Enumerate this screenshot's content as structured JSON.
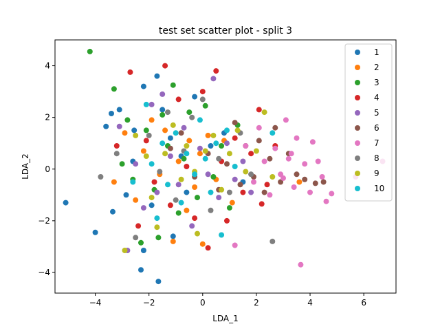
{
  "chart_data": {
    "type": "scatter",
    "title": "test set scatter plot - split 3",
    "xlabel": "LDA_1",
    "ylabel": "LDA_2",
    "xlim": [
      -5.5,
      7.2
    ],
    "ylim": [
      -4.8,
      5.0
    ],
    "xticks": [
      -4,
      -2,
      0,
      2,
      4,
      6
    ],
    "yticks": [
      -4,
      -2,
      0,
      2,
      4
    ],
    "legend_position": "top-right",
    "grid": false,
    "series": [
      {
        "name": "1",
        "color": "#1f77b4",
        "points": [
          [
            -5.1,
            -1.3
          ],
          [
            -4.0,
            -2.45
          ],
          [
            -3.6,
            1.65
          ],
          [
            -3.4,
            2.15
          ],
          [
            -3.35,
            -1.65
          ],
          [
            -3.1,
            2.3
          ],
          [
            -2.85,
            -1.0
          ],
          [
            -2.6,
            0.3
          ],
          [
            -2.55,
            1.5
          ],
          [
            -2.3,
            -3.9
          ],
          [
            -2.2,
            -3.15
          ],
          [
            -2.2,
            3.2
          ],
          [
            -1.9,
            -1.4
          ],
          [
            -1.7,
            3.6
          ],
          [
            -1.65,
            -4.35
          ],
          [
            -1.5,
            2.3
          ],
          [
            -1.2,
            1.2
          ],
          [
            -1.1,
            -2.6
          ],
          [
            -0.8,
            0.5
          ],
          [
            -0.6,
            -0.9
          ],
          [
            -0.3,
            2.8
          ],
          [
            0.3,
            0.9
          ],
          [
            0.8,
            1.4
          ],
          [
            1.5,
            -0.5
          ]
        ]
      },
      {
        "name": "2",
        "color": "#ff7f0e",
        "points": [
          [
            -3.3,
            -0.5
          ],
          [
            -2.9,
            1.4
          ],
          [
            -2.5,
            -1.2
          ],
          [
            -2.2,
            0.7
          ],
          [
            -1.9,
            1.9
          ],
          [
            -1.6,
            -0.2
          ],
          [
            -1.4,
            1.5
          ],
          [
            -1.1,
            -2.8
          ],
          [
            -0.9,
            0.3
          ],
          [
            -0.6,
            -1.6
          ],
          [
            -0.5,
            1.1
          ],
          [
            -0.3,
            -0.7
          ],
          [
            -0.1,
            0.6
          ],
          [
            0.0,
            -2.9
          ],
          [
            0.2,
            1.3
          ],
          [
            0.5,
            -0.4
          ],
          [
            0.8,
            1.1
          ],
          [
            1.1,
            -1.3
          ],
          [
            3.6,
            -0.5
          ]
        ]
      },
      {
        "name": "3",
        "color": "#2ca02c",
        "points": [
          [
            -4.2,
            4.55
          ],
          [
            -3.3,
            3.1
          ],
          [
            -3.0,
            0.2
          ],
          [
            -2.8,
            1.9
          ],
          [
            -2.6,
            -0.4
          ],
          [
            -2.3,
            -2.85
          ],
          [
            -2.1,
            1.5
          ],
          [
            -1.8,
            -0.8
          ],
          [
            -1.65,
            -2.65
          ],
          [
            -1.5,
            2.1
          ],
          [
            -1.3,
            0.9
          ],
          [
            -1.1,
            3.25
          ],
          [
            -0.9,
            -1.7
          ],
          [
            -0.7,
            0.4
          ],
          [
            -0.5,
            2.2
          ],
          [
            -0.2,
            -1.1
          ],
          [
            0.1,
            2.45
          ],
          [
            0.4,
            -0.3
          ],
          [
            0.7,
            0.9
          ],
          [
            1.0,
            -1.5
          ],
          [
            1.3,
            1.7
          ]
        ]
      },
      {
        "name": "4",
        "color": "#d62728",
        "points": [
          [
            -3.2,
            0.9
          ],
          [
            -2.7,
            3.75
          ],
          [
            -2.4,
            -2.2
          ],
          [
            -2.1,
            1.1
          ],
          [
            -1.8,
            -0.5
          ],
          [
            -1.4,
            4.0
          ],
          [
            -1.2,
            -1.4
          ],
          [
            -0.9,
            2.7
          ],
          [
            -0.6,
            0.1
          ],
          [
            -0.3,
            -1.9
          ],
          [
            0.0,
            3.0
          ],
          [
            0.2,
            -3.05
          ],
          [
            0.5,
            3.8
          ],
          [
            0.7,
            0.3
          ],
          [
            0.9,
            -2.0
          ],
          [
            1.2,
            1.2
          ],
          [
            1.5,
            -0.9
          ],
          [
            1.8,
            0.6
          ],
          [
            2.1,
            2.3
          ],
          [
            2.2,
            -1.35
          ],
          [
            2.4,
            -0.6
          ],
          [
            2.7,
            0.9
          ]
        ]
      },
      {
        "name": "5",
        "color": "#9467bd",
        "points": [
          [
            -3.1,
            1.65
          ],
          [
            -2.8,
            -3.15
          ],
          [
            -2.5,
            0.2
          ],
          [
            -2.2,
            -1.5
          ],
          [
            -1.9,
            2.5
          ],
          [
            -1.7,
            -0.9
          ],
          [
            -1.5,
            2.9
          ],
          [
            -1.2,
            0.5
          ],
          [
            -0.9,
            -0.6
          ],
          [
            -0.7,
            1.6
          ],
          [
            -0.4,
            -2.2
          ],
          [
            -0.1,
            0.8
          ],
          [
            0.2,
            -0.2
          ],
          [
            0.4,
            3.5
          ],
          [
            0.6,
            -1.1
          ],
          [
            0.9,
            1.0
          ],
          [
            1.2,
            -0.4
          ],
          [
            1.5,
            0.3
          ],
          [
            1.8,
            -0.9
          ]
        ]
      },
      {
        "name": "6",
        "color": "#8c564b",
        "points": [
          [
            -1.2,
            0.8
          ],
          [
            -0.8,
            1.4
          ],
          [
            -0.3,
            -0.3
          ],
          [
            0.2,
            0.6
          ],
          [
            0.6,
            -0.8
          ],
          [
            0.9,
            0.2
          ],
          [
            1.2,
            1.8
          ],
          [
            1.4,
            -0.6
          ],
          [
            1.6,
            0.9
          ],
          [
            1.9,
            -0.3
          ],
          [
            2.1,
            1.1
          ],
          [
            2.3,
            -0.9
          ],
          [
            2.5,
            0.4
          ],
          [
            2.7,
            1.6
          ],
          [
            2.9,
            -0.5
          ],
          [
            3.2,
            0.6
          ],
          [
            3.5,
            -0.2
          ],
          [
            3.8,
            -0.4
          ],
          [
            4.2,
            -0.55
          ],
          [
            4.5,
            -0.5
          ]
        ]
      },
      {
        "name": "7",
        "color": "#e377c2",
        "points": [
          [
            1.2,
            -2.95
          ],
          [
            1.6,
            0.9
          ],
          [
            1.9,
            -0.5
          ],
          [
            2.1,
            1.6
          ],
          [
            2.3,
            0.3
          ],
          [
            2.5,
            -1.0
          ],
          [
            2.7,
            0.8
          ],
          [
            2.9,
            -0.2
          ],
          [
            3.1,
            1.9
          ],
          [
            3.2,
            0.4
          ],
          [
            3.4,
            -0.7
          ],
          [
            3.5,
            1.2
          ],
          [
            3.65,
            -3.7
          ],
          [
            3.8,
            0.2
          ],
          [
            4.0,
            -0.9
          ],
          [
            4.1,
            1.05
          ],
          [
            4.3,
            0.3
          ],
          [
            4.45,
            -0.3
          ],
          [
            4.6,
            -1.25
          ],
          [
            4.8,
            -0.95
          ],
          [
            5.7,
            -0.3
          ],
          [
            6.7,
            0.3
          ],
          [
            3.0,
            -0.35
          ],
          [
            3.3,
            0.6
          ]
        ]
      },
      {
        "name": "8",
        "color": "#7f7f7f",
        "points": [
          [
            -3.8,
            -0.3
          ],
          [
            -3.2,
            0.6
          ],
          [
            -2.5,
            -2.65
          ],
          [
            -2.0,
            1.3
          ],
          [
            -1.6,
            -0.1
          ],
          [
            -1.3,
            2.2
          ],
          [
            -1.0,
            -1.2
          ],
          [
            -0.7,
            0.7
          ],
          [
            -0.4,
            2.0
          ],
          [
            0.0,
            2.7
          ],
          [
            0.3,
            -1.6
          ],
          [
            0.6,
            0.4
          ],
          [
            1.0,
            -0.9
          ],
          [
            1.4,
            1.4
          ],
          [
            1.8,
            -0.2
          ],
          [
            2.6,
            -2.8
          ]
        ]
      },
      {
        "name": "9",
        "color": "#bcbd22",
        "points": [
          [
            -2.9,
            -3.15
          ],
          [
            -2.5,
            1.3
          ],
          [
            -2.1,
            0.5
          ],
          [
            -1.9,
            -1.1
          ],
          [
            -1.7,
            -2.25
          ],
          [
            -1.4,
            0.6
          ],
          [
            -1.1,
            1.7
          ],
          [
            -0.8,
            -0.4
          ],
          [
            -0.6,
            0.9
          ],
          [
            -0.3,
            -0.1
          ],
          [
            -0.2,
            -2.5
          ],
          [
            0.1,
            0.7
          ],
          [
            0.4,
            1.3
          ],
          [
            0.7,
            -0.8
          ],
          [
            1.0,
            0.6
          ],
          [
            1.3,
            1.5
          ],
          [
            1.6,
            -0.1
          ],
          [
            2.0,
            0.7
          ],
          [
            2.3,
            2.2
          ],
          [
            2.6,
            -0.3
          ]
        ]
      },
      {
        "name": "10",
        "color": "#17becf",
        "points": [
          [
            -2.6,
            -0.5
          ],
          [
            -2.1,
            2.5
          ],
          [
            -1.9,
            0.2
          ],
          [
            -1.7,
            -1.9
          ],
          [
            -1.5,
            1.0
          ],
          [
            -1.3,
            -0.6
          ],
          [
            -1.0,
            1.4
          ],
          [
            -0.8,
            -1.3
          ],
          [
            -0.6,
            0.6
          ],
          [
            -0.3,
            -0.2
          ],
          [
            -0.1,
            1.9
          ],
          [
            0.1,
            0.4
          ],
          [
            0.3,
            -0.9
          ],
          [
            0.5,
            1.0
          ],
          [
            0.7,
            -2.55
          ],
          [
            0.9,
            1.5
          ],
          [
            1.2,
            0.1
          ],
          [
            2.6,
            1.4
          ]
        ]
      }
    ]
  }
}
